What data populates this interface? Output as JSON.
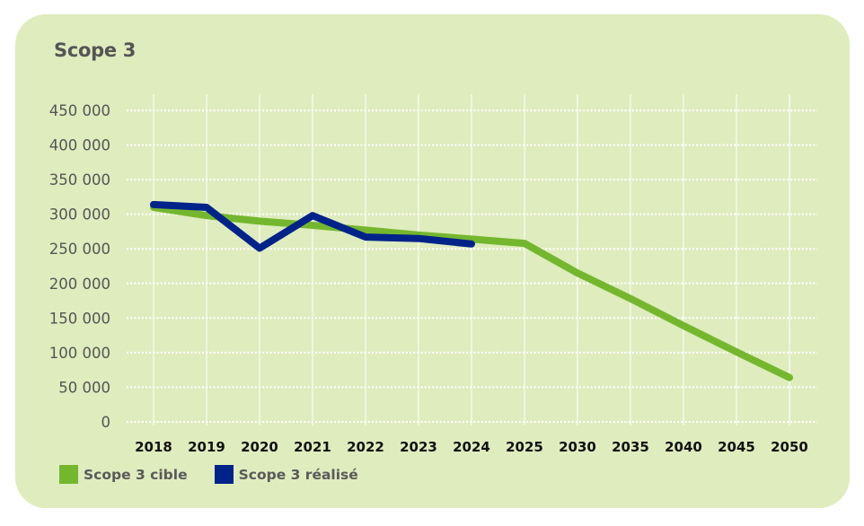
{
  "title": "Scope 3",
  "colors": {
    "card_background": "#dfecbd",
    "target": "#74b72e",
    "actual": "#00238a",
    "grid": "#ffffff"
  },
  "chart_data": {
    "type": "line",
    "title": "Scope 3",
    "xlabel": "",
    "ylabel": "",
    "ylim": [
      0,
      450000
    ],
    "yticks": [
      0,
      50000,
      100000,
      150000,
      200000,
      250000,
      300000,
      350000,
      400000,
      450000
    ],
    "ytick_labels": [
      "0",
      "50 000",
      "100 000",
      "150 000",
      "200 000",
      "250 000",
      "300 000",
      "350 000",
      "400 000",
      "450 000"
    ],
    "categories": [
      "2018",
      "2019",
      "2020",
      "2021",
      "2022",
      "2023",
      "2024",
      "2025",
      "2030",
      "2035",
      "2040",
      "2045",
      "2050"
    ],
    "grid": true,
    "legend_position": "bottom-left",
    "series": [
      {
        "name": "Scope 3 cible",
        "color": "#74b72e",
        "values": [
          310000,
          298000,
          290000,
          284000,
          277000,
          270000,
          264000,
          258000,
          215000,
          178000,
          139000,
          101000,
          64000
        ]
      },
      {
        "name": "Scope 3 réalisé",
        "color": "#00238a",
        "values": [
          314000,
          310000,
          251000,
          298000,
          267000,
          265000,
          257000,
          null,
          null,
          null,
          null,
          null,
          null
        ]
      }
    ]
  }
}
